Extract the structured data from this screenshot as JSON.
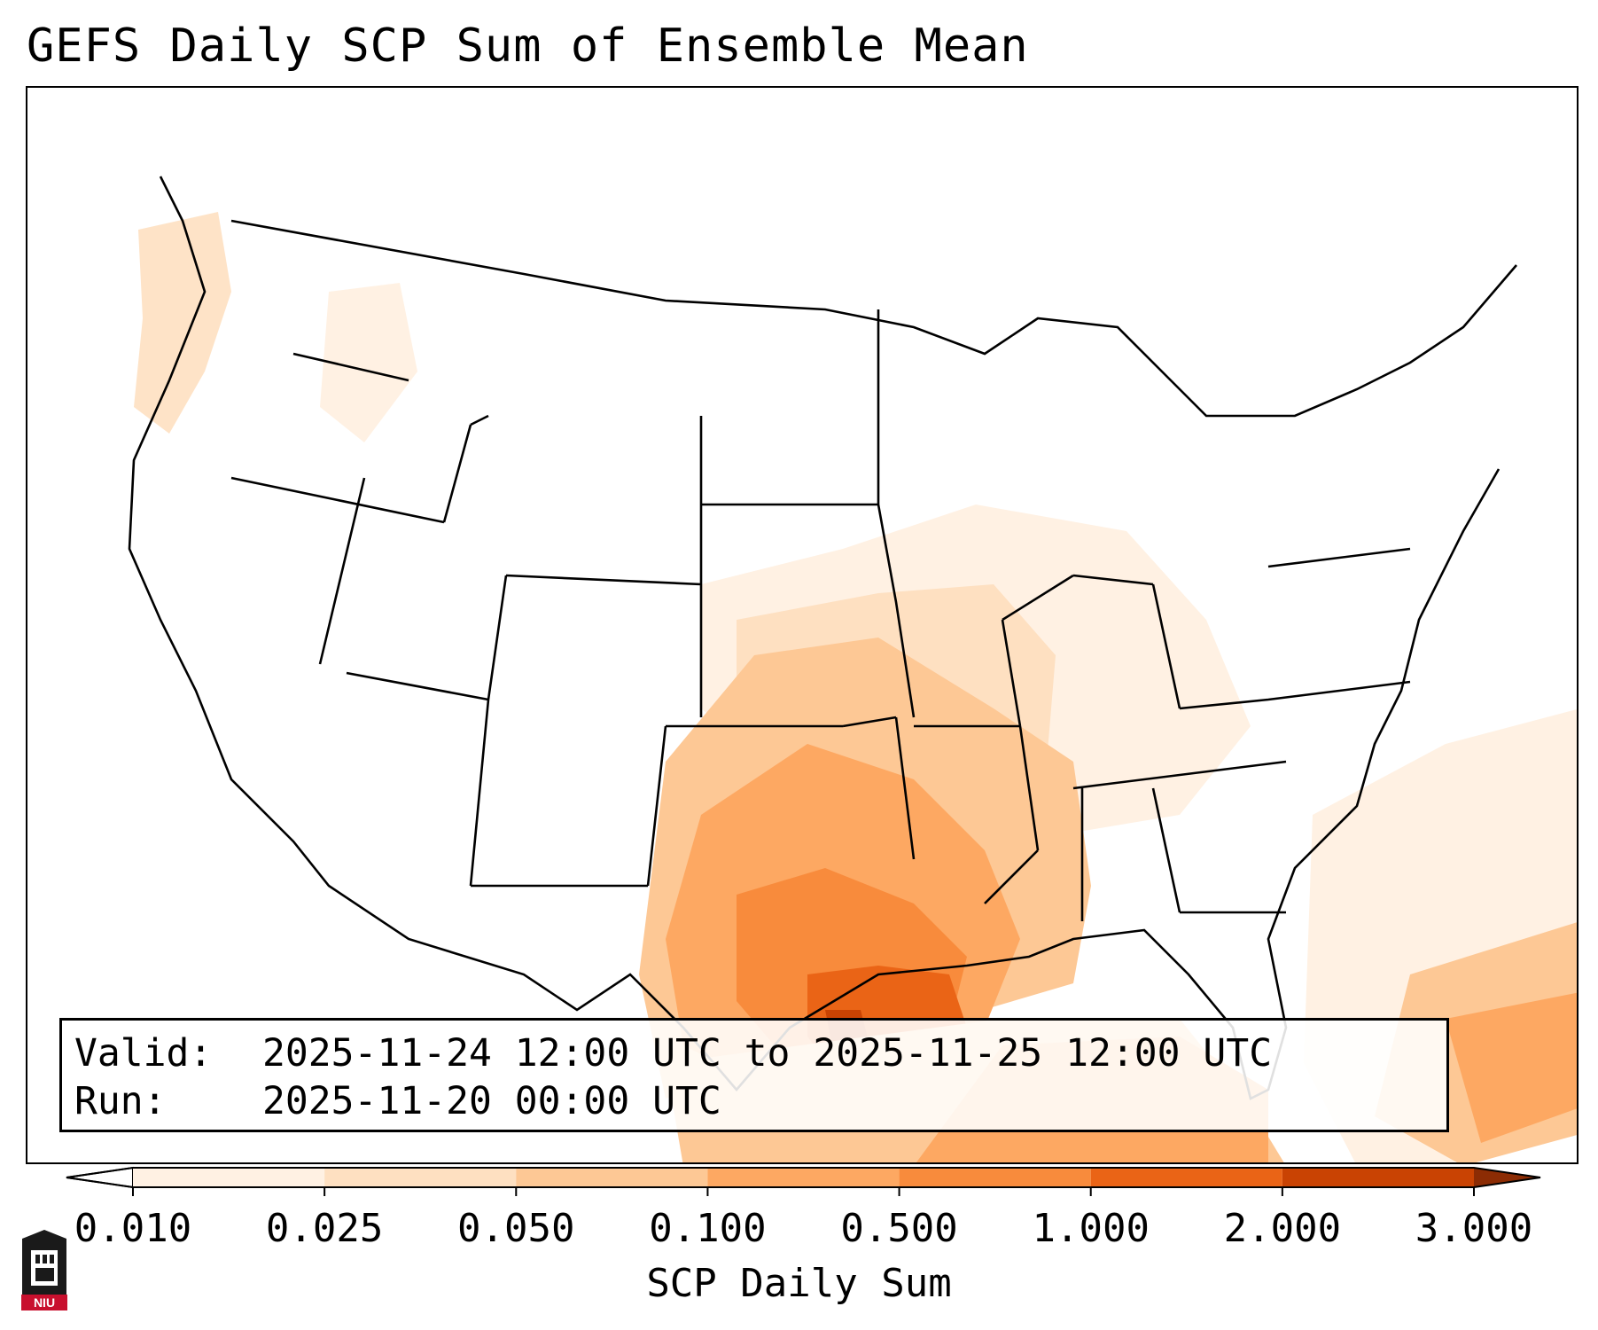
{
  "title": "GEFS Daily SCP Sum of Ensemble Mean",
  "valid": {
    "valid_label": "Valid:",
    "valid_value": "2025-11-24 12:00 UTC to 2025-11-25 12:00 UTC",
    "run_label": "Run:",
    "run_value": "2025-11-20 00:00 UTC"
  },
  "colorbar": {
    "title": "SCP Daily Sum",
    "ticks": [
      "0.010",
      "0.025",
      "0.050",
      "0.100",
      "0.500",
      "1.000",
      "2.000",
      "3.000"
    ],
    "colors": [
      "#fff1e3",
      "#fee0c1",
      "#fdc895",
      "#fda862",
      "#f88b3c",
      "#ea6416",
      "#c94303",
      "#8c2c04"
    ]
  },
  "logo": {
    "text": "NIU",
    "color": "#c8102e"
  }
}
